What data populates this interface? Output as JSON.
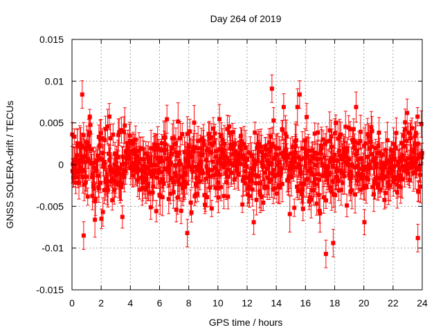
{
  "chart_data": {
    "type": "scatter",
    "title": "Day 264 of 2019",
    "xlabel": "GPS time / hours",
    "ylabel": "GNSS SOLERA-drift / TECUs",
    "xlim": [
      0,
      24
    ],
    "ylim": [
      -0.015,
      0.015
    ],
    "xticks": [
      0,
      2,
      4,
      6,
      8,
      10,
      12,
      14,
      16,
      18,
      20,
      22,
      24
    ],
    "xtick_labels": [
      "0",
      "2",
      "4",
      "6",
      "8",
      "10",
      "12",
      "14",
      "16",
      "18",
      "20",
      "22",
      "24"
    ],
    "yticks": [
      -0.015,
      -0.01,
      -0.005,
      0,
      0.005,
      0.01,
      0.015
    ],
    "ytick_labels": [
      "-0.015",
      "-0.01",
      "-0.005",
      "0",
      "0.005",
      "0.01",
      "0.015"
    ],
    "grid": true,
    "series": [
      {
        "name": "SOLERA-drift",
        "color": "#ff0000",
        "marker": "square",
        "error_bars": true,
        "n_points": 2880,
        "x_range": [
          0,
          24
        ],
        "y_spread": 0.006,
        "error_typical": 0.0015,
        "extremes": [
          {
            "x": 13.7,
            "y": 0.0091
          },
          {
            "x": 0.7,
            "y": 0.0084
          },
          {
            "x": 15.6,
            "y": 0.0084
          },
          {
            "x": 17.4,
            "y": -0.0107
          },
          {
            "x": 0.8,
            "y": -0.0085
          },
          {
            "x": 17.9,
            "y": -0.0094
          },
          {
            "x": 23.7,
            "y": -0.0088
          },
          {
            "x": 7.9,
            "y": -0.0082
          }
        ]
      }
    ]
  }
}
